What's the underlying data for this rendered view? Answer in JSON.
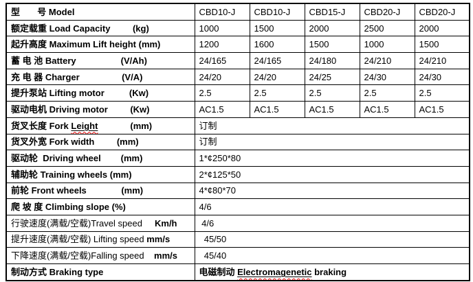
{
  "colors": {
    "text": "#000000",
    "highlight_red": "#ff0000",
    "table_border": "#000000",
    "background": "#ffffff"
  },
  "table": {
    "rows": [
      {
        "id": "model",
        "label": [
          {
            "text": "型       号 Model",
            "bold": true
          }
        ],
        "values": [
          "CBD10-J",
          "CBD10-J",
          "CBD15-J",
          "CBD20-J",
          "CBD20-J"
        ]
      },
      {
        "id": "load-capacity",
        "label": [
          {
            "text": "额定载重 Load Capacity         (kg)",
            "bold": true
          }
        ],
        "values": [
          "1000",
          "1500",
          "2000",
          "2500",
          "2000"
        ]
      },
      {
        "id": "max-lift-height",
        "label": [
          {
            "text": "起升高度 Maximum Lift height (mm)",
            "bold": true
          }
        ],
        "values": [
          "1200",
          "1600",
          "1500",
          "1000",
          "1500"
        ]
      },
      {
        "id": "battery",
        "label": [
          {
            "text": "蓄 电 池 Battery                  (V/Ah)",
            "bold": true
          }
        ],
        "values": [
          "24/165",
          "24/165",
          "24/180",
          "24/210",
          "24/210"
        ]
      },
      {
        "id": "charger",
        "label": [
          {
            "text": "充 电 器 Charger                 (V/A)",
            "bold": true
          }
        ],
        "values": [
          "24/20",
          "24/20",
          "24/25",
          "24/30",
          "24/30"
        ]
      },
      {
        "id": "lifting-motor",
        "label": [
          {
            "text": "提升泵站 Lifting motor          (Kw)",
            "bold": true
          }
        ],
        "values": [
          "2.5",
          "2.5",
          "2.5",
          "2.5",
          "2.5"
        ],
        "values_red": true
      },
      {
        "id": "driving-motor",
        "label": [
          {
            "text": "驱动电机 Driving motor         (Kw)",
            "bold": true
          }
        ],
        "values": [
          "AC1.5",
          "AC1.5",
          "AC1.5",
          "AC1.5",
          "AC1.5"
        ]
      },
      {
        "id": "fork-length",
        "label": [
          {
            "text": "货叉长度 Fork ",
            "bold": true
          },
          {
            "text": "Leight",
            "bold": true,
            "wavy": true
          },
          {
            "text": "             (mm)",
            "bold": true
          }
        ],
        "merged_value": [
          {
            "text": "订制"
          }
        ]
      },
      {
        "id": "fork-width",
        "label": [
          {
            "text": "货叉外宽 Fork width         (mm)",
            "bold": true
          }
        ],
        "merged_value": [
          {
            "text": "订制"
          }
        ]
      },
      {
        "id": "driving-wheel",
        "label": [
          {
            "text": "驱动轮  Driving wheel        (mm)",
            "bold": true
          }
        ],
        "merged_value": [
          {
            "text": "1*¢250*80"
          }
        ]
      },
      {
        "id": "training-wheels",
        "label": [
          {
            "text": "辅助轮 Training wheels (mm)",
            "bold": true
          }
        ],
        "merged_value": [
          {
            "text": "2*¢125*50"
          }
        ]
      },
      {
        "id": "front-wheels",
        "label": [
          {
            "text": "前轮 Front wheels              (mm)",
            "bold": true
          }
        ],
        "merged_value": [
          {
            "text": "4*¢80*70"
          }
        ]
      },
      {
        "id": "climbing-slope",
        "label": [
          {
            "text": "爬 坡 度 Climbing slope (%)",
            "bold": true
          }
        ],
        "merged_value": [
          {
            "text": "4/6"
          }
        ]
      },
      {
        "id": "travel-speed",
        "label": [
          {
            "text": "行驶速度(满载/空载)Travel speed     ",
            "bold": false
          },
          {
            "text": "Km/h",
            "bold": true
          }
        ],
        "merged_value": [
          {
            "text": " 4/6"
          }
        ]
      },
      {
        "id": "lifting-speed",
        "label": [
          {
            "text": "提升速度(满载/空载) Lifting speed ",
            "bold": false
          },
          {
            "text": "mm/s",
            "bold": true
          }
        ],
        "merged_value": [
          {
            "text": "  45/50"
          }
        ]
      },
      {
        "id": "falling-speed",
        "label": [
          {
            "text": "下降速度(满载/空载)Falling speed    ",
            "bold": false
          },
          {
            "text": "mm/s",
            "bold": true
          }
        ],
        "merged_value": [
          {
            "text": "  45/40"
          }
        ]
      },
      {
        "id": "braking-type",
        "label": [
          {
            "text": "制动方式 Braking type",
            "bold": true
          }
        ],
        "merged_value": [
          {
            "text": "电磁制动 ",
            "bold": true
          },
          {
            "text": "Electromagenetic",
            "bold": true,
            "wavy": true
          },
          {
            "text": " braking",
            "bold": true
          }
        ]
      }
    ]
  }
}
